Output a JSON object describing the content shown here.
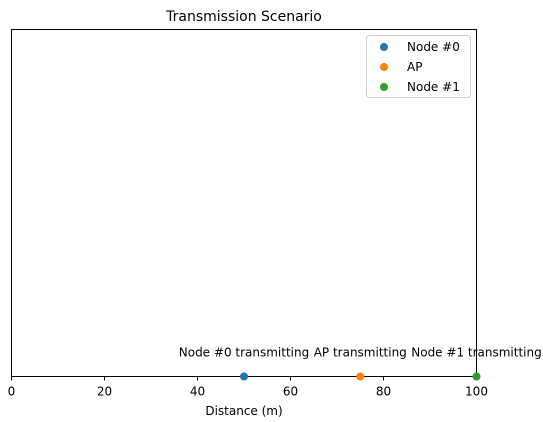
{
  "chart_data": {
    "type": "scatter",
    "title": "Transmission Scenario",
    "xlabel": "Distance (m)",
    "ylabel": "",
    "xlim": [
      0,
      100
    ],
    "xticks": [
      0,
      20,
      40,
      60,
      80,
      100
    ],
    "yticks_visible": false,
    "grid": false,
    "legend_position": "top-right",
    "series": [
      {
        "name": "Node #0",
        "x": 50,
        "y": 0,
        "color": "#1f77b4",
        "annotation": "Node #0 transmitting"
      },
      {
        "name": "AP",
        "x": 75,
        "y": 0,
        "color": "#ff7f0e",
        "annotation": "AP transmitting"
      },
      {
        "name": "Node #1",
        "x": 100,
        "y": 0,
        "color": "#2ca02c",
        "annotation": "Node #1 transmitting"
      }
    ]
  }
}
